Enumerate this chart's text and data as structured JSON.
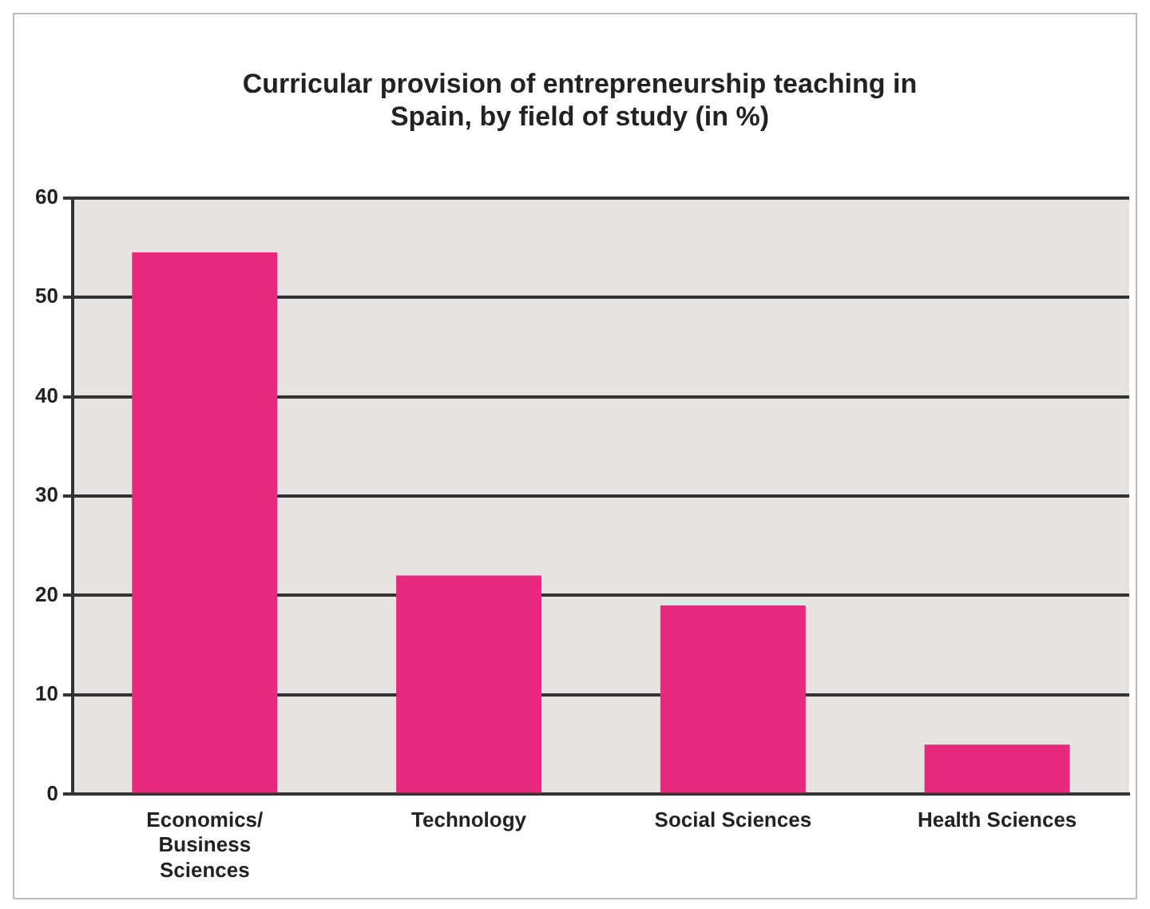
{
  "chart_data": {
    "type": "bar",
    "title": "Curricular provision of entrepreneurship teaching in Spain, by field of study (in %)",
    "categories": [
      "Economics/ Business Sciences",
      "Technology",
      "Social Sciences",
      "Health Sciences"
    ],
    "values": [
      54.5,
      22,
      19,
      5
    ],
    "color": "#e6287e",
    "ylim": [
      0,
      60
    ],
    "yticks": [
      0,
      10,
      20,
      30,
      40,
      50,
      60
    ],
    "grid": "y"
  }
}
